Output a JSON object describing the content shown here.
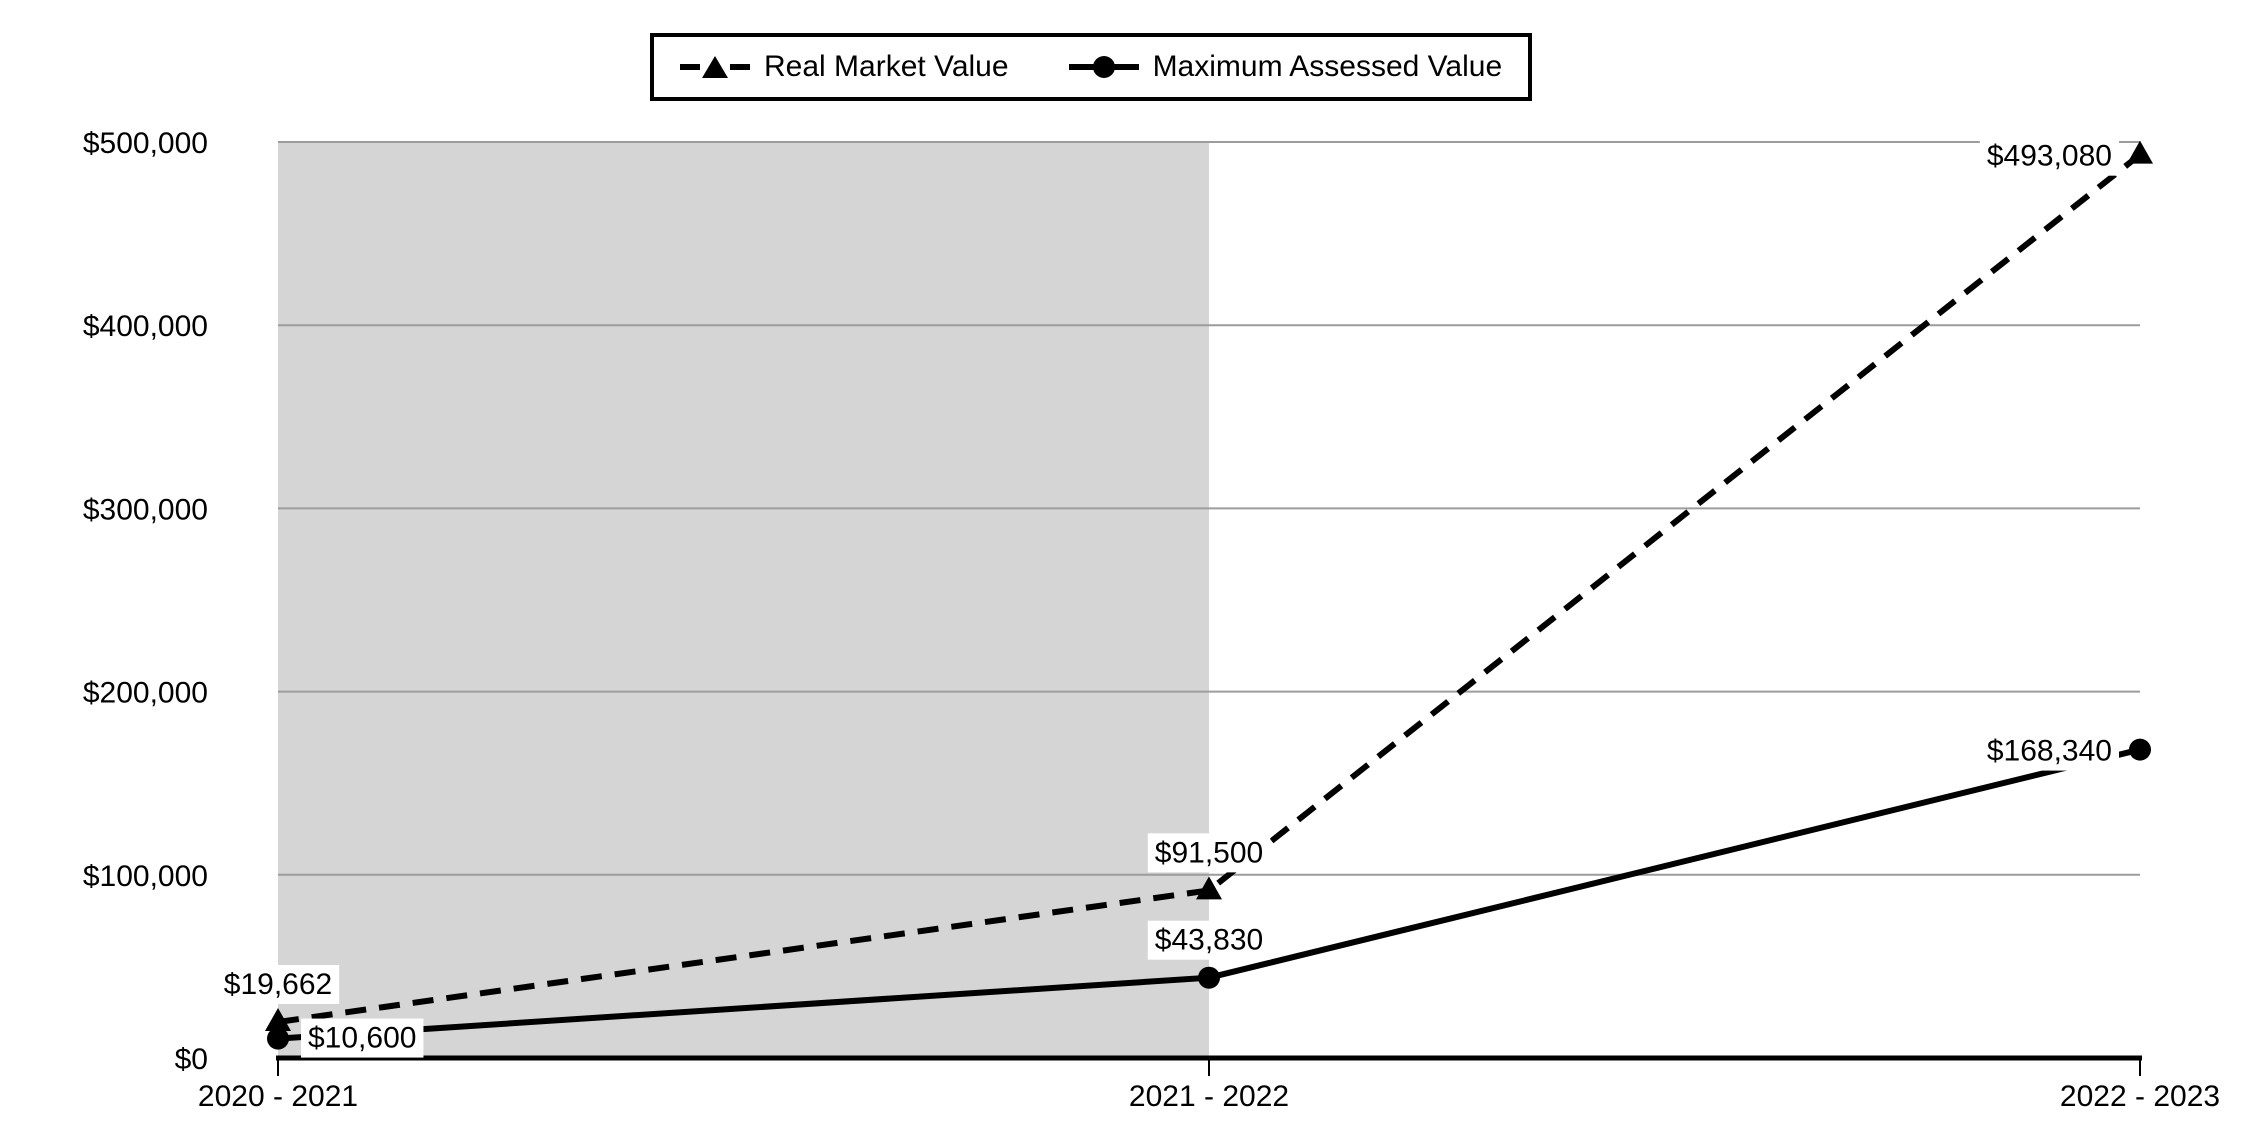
{
  "legend": {
    "items": [
      {
        "label": "Real Market Value",
        "line_style": "dashed",
        "marker": "triangle"
      },
      {
        "label": "Maximum Assessed Value",
        "line_style": "solid",
        "marker": "circle"
      }
    ]
  },
  "colors": {
    "series": "#000000",
    "gridline": "#9c9c9c",
    "axis": "#000000",
    "shaded_region": "#d5d5d5",
    "label_background": "#ffffff",
    "text": "#000000",
    "background": "#ffffff"
  },
  "chart_data": {
    "type": "line",
    "title": "",
    "xlabel": "",
    "ylabel": "",
    "categories": [
      "2020 - 2021",
      "2021 - 2022",
      "2022 - 2023"
    ],
    "series": [
      {
        "name": "Real Market Value",
        "style": "dashed",
        "marker": "triangle",
        "values": [
          19662,
          91500,
          493080
        ],
        "point_labels": [
          "$19,662",
          "$91,500",
          "$493,080"
        ]
      },
      {
        "name": "Maximum Assessed Value",
        "style": "solid",
        "marker": "circle",
        "values": [
          10600,
          43830,
          168340
        ],
        "point_labels": [
          "$10,600",
          "$43,830",
          "$168,340"
        ]
      }
    ],
    "ylim": [
      0,
      500000
    ],
    "yticks": [
      0,
      100000,
      200000,
      300000,
      400000,
      500000
    ],
    "ytick_labels": [
      "$0",
      "$100,000",
      "$200,000",
      "$300,000",
      "$400,000",
      "$500,000"
    ],
    "grid": "horizontal",
    "legend_position": "top-center",
    "shaded_region": {
      "from_category": "2020 - 2021",
      "to_category": "2021 - 2022"
    }
  }
}
